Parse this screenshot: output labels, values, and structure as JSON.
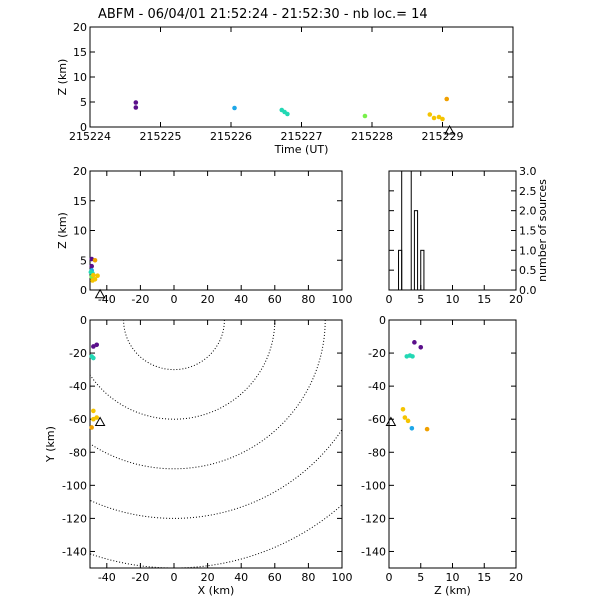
{
  "title": "ABFM - 06/04/01 21:52:24 - 21:52:30 - nb loc.=      14",
  "colors": {
    "purple": "#5a0f8a",
    "cyan": "#1ea7e8",
    "teal": "#22d8b4",
    "green": "#78f04a",
    "yellow": "#f5c400",
    "orange": "#f0a000"
  },
  "chart_data": [
    {
      "type": "scatter",
      "panel": "time-height",
      "xlabel": "Time (UT)",
      "ylabel": "Z (km)",
      "xlim": [
        215224,
        215230
      ],
      "ylim": [
        0,
        20
      ],
      "xticks": [
        215224,
        215225,
        215226,
        215227,
        215228,
        215229
      ],
      "yticks": [
        0,
        5,
        10,
        15,
        20
      ],
      "station_marker": {
        "x": 215229.1,
        "y": -0.8
      },
      "points": [
        {
          "x": 215224.65,
          "y": 4.9,
          "color": "purple"
        },
        {
          "x": 215224.65,
          "y": 3.9,
          "color": "purple"
        },
        {
          "x": 215226.05,
          "y": 3.8,
          "color": "cyan"
        },
        {
          "x": 215226.72,
          "y": 3.4,
          "color": "teal"
        },
        {
          "x": 215226.76,
          "y": 3.0,
          "color": "teal"
        },
        {
          "x": 215226.8,
          "y": 2.6,
          "color": "teal"
        },
        {
          "x": 215227.9,
          "y": 2.2,
          "color": "green"
        },
        {
          "x": 215228.82,
          "y": 2.5,
          "color": "yellow"
        },
        {
          "x": 215228.88,
          "y": 1.8,
          "color": "yellow"
        },
        {
          "x": 215228.95,
          "y": 2.0,
          "color": "yellow"
        },
        {
          "x": 215229.0,
          "y": 1.6,
          "color": "yellow"
        },
        {
          "x": 215229.06,
          "y": 5.6,
          "color": "orange"
        }
      ]
    },
    {
      "type": "scatter",
      "panel": "x-height",
      "xlabel": "",
      "ylabel": "Z (km)",
      "xlim": [
        -50,
        100
      ],
      "ylim": [
        0,
        20
      ],
      "xticks": [
        -40,
        -20,
        0,
        20,
        40,
        60,
        80,
        100
      ],
      "yticks": [
        0,
        5,
        10,
        15,
        20
      ],
      "station_marker": {
        "x": -44,
        "y": -0.8
      },
      "points": [
        {
          "x": -49,
          "y": 5.2,
          "color": "purple"
        },
        {
          "x": -49,
          "y": 4.0,
          "color": "purple"
        },
        {
          "x": -49,
          "y": 3.3,
          "color": "cyan"
        },
        {
          "x": -49.5,
          "y": 3.0,
          "color": "teal"
        },
        {
          "x": -48.5,
          "y": 2.8,
          "color": "teal"
        },
        {
          "x": -49,
          "y": 2.2,
          "color": "green"
        },
        {
          "x": -48,
          "y": 2.5,
          "color": "yellow"
        },
        {
          "x": -47,
          "y": 1.8,
          "color": "yellow"
        },
        {
          "x": -45.5,
          "y": 2.4,
          "color": "yellow"
        },
        {
          "x": -48.5,
          "y": 1.6,
          "color": "yellow"
        },
        {
          "x": -47,
          "y": 5.0,
          "color": "orange"
        }
      ]
    },
    {
      "type": "bar",
      "panel": "height-histogram",
      "xlabel": "",
      "ylabel": "number of sources",
      "xlim": [
        0,
        20
      ],
      "ylim": [
        0,
        3
      ],
      "xticks": [
        0,
        5,
        10,
        15,
        20
      ],
      "yticks": [
        "0.0",
        "0.5",
        "1.0",
        "1.5",
        "2.0",
        "2.5",
        "3.0"
      ],
      "bins": [
        {
          "x0": 1.5,
          "x1": 2.0,
          "value": 1
        },
        {
          "x0": 2.0,
          "x1": 3.5,
          "value": 3
        },
        {
          "x0": 3.5,
          "x1": 4.0,
          "value": 0
        },
        {
          "x0": 4.0,
          "x1": 4.5,
          "value": 2
        },
        {
          "x0": 4.5,
          "x1": 5.0,
          "value": 0
        },
        {
          "x0": 5.0,
          "x1": 5.5,
          "value": 1
        }
      ]
    },
    {
      "type": "scatter",
      "panel": "plan-view",
      "xlabel": "X (km)",
      "ylabel": "Y (km)",
      "xlim": [
        -50,
        100
      ],
      "ylim": [
        -150,
        0
      ],
      "xticks": [
        -40,
        -20,
        0,
        20,
        40,
        60,
        80,
        100
      ],
      "yticks": [
        -140,
        -120,
        -100,
        -80,
        -60,
        -40,
        -20,
        0
      ],
      "range_rings_km": [
        30,
        60,
        90,
        120,
        150
      ],
      "ring_center": {
        "x": 0,
        "y": 0
      },
      "station_marker": {
        "x": -44,
        "y": -62
      },
      "points": [
        {
          "x": -48,
          "y": -16,
          "color": "purple"
        },
        {
          "x": -46,
          "y": -15,
          "color": "purple"
        },
        {
          "x": -49,
          "y": -22,
          "color": "teal"
        },
        {
          "x": -48,
          "y": -23,
          "color": "teal"
        },
        {
          "x": -48,
          "y": -55,
          "color": "yellow"
        },
        {
          "x": -46,
          "y": -59,
          "color": "yellow"
        },
        {
          "x": -48,
          "y": -60,
          "color": "yellow"
        },
        {
          "x": -49,
          "y": -65,
          "color": "orange"
        }
      ]
    },
    {
      "type": "scatter",
      "panel": "z-y",
      "xlabel": "Z (km)",
      "ylabel": "",
      "xlim": [
        0,
        20
      ],
      "ylim": [
        -150,
        0
      ],
      "xticks": [
        0,
        5,
        10,
        15,
        20
      ],
      "yticks": [
        -140,
        -120,
        -100,
        -80,
        -60,
        -40,
        -20,
        0
      ],
      "station_marker": {
        "x": 0.3,
        "y": -62
      },
      "points": [
        {
          "x": 4.0,
          "y": -13.5,
          "color": "purple"
        },
        {
          "x": 5.0,
          "y": -16.5,
          "color": "purple"
        },
        {
          "x": 2.8,
          "y": -22,
          "color": "teal"
        },
        {
          "x": 3.3,
          "y": -21.5,
          "color": "teal"
        },
        {
          "x": 3.7,
          "y": -22,
          "color": "teal"
        },
        {
          "x": 2.2,
          "y": -54,
          "color": "yellow"
        },
        {
          "x": 2.5,
          "y": -59,
          "color": "yellow"
        },
        {
          "x": 3.0,
          "y": -61,
          "color": "yellow"
        },
        {
          "x": 3.6,
          "y": -65.5,
          "color": "cyan"
        },
        {
          "x": 6.0,
          "y": -66,
          "color": "orange"
        }
      ]
    }
  ]
}
